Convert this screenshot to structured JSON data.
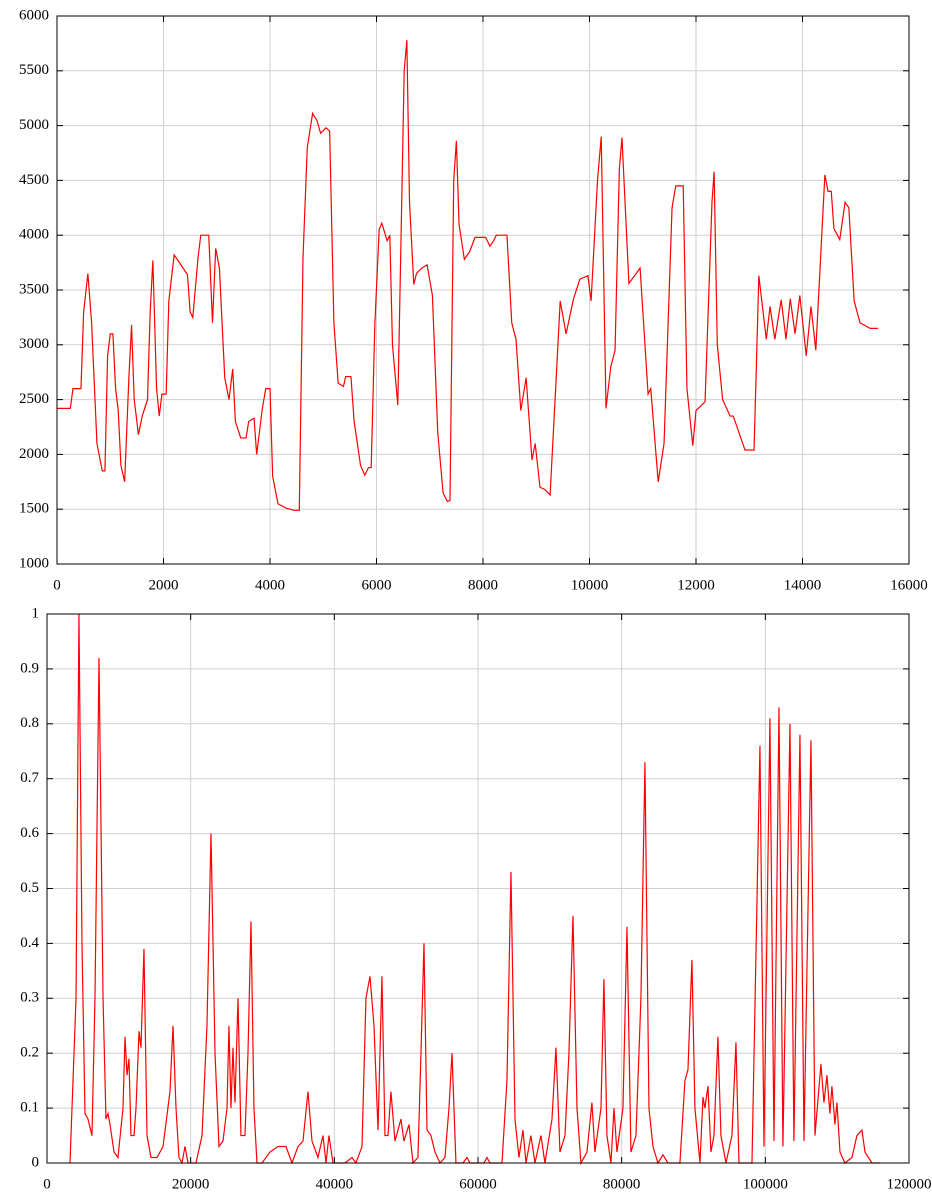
{
  "chart_data": [
    {
      "type": "line",
      "color": "#ff0000",
      "grid": true,
      "xlim": [
        0,
        16000
      ],
      "ylim": [
        1000,
        6000
      ],
      "xticks": [
        0,
        2000,
        4000,
        6000,
        8000,
        10000,
        12000,
        14000,
        16000
      ],
      "yticks": [
        1000,
        1500,
        2000,
        2500,
        3000,
        3500,
        4000,
        4500,
        5000,
        5500,
        6000
      ],
      "x": [
        0,
        250,
        300,
        450,
        500,
        580,
        650,
        750,
        850,
        900,
        950,
        1000,
        1050,
        1100,
        1150,
        1200,
        1270,
        1350,
        1400,
        1450,
        1530,
        1600,
        1700,
        1750,
        1800,
        1870,
        1920,
        1970,
        2050,
        2100,
        2200,
        2300,
        2450,
        2500,
        2550,
        2650,
        2700,
        2850,
        2920,
        2980,
        3050,
        3150,
        3230,
        3300,
        3350,
        3450,
        3550,
        3600,
        3700,
        3750,
        3850,
        3920,
        4000,
        4050,
        4150,
        4300,
        4450,
        4550,
        4620,
        4700,
        4800,
        4880,
        4950,
        5050,
        5120,
        5200,
        5280,
        5380,
        5420,
        5520,
        5580,
        5700,
        5780,
        5850,
        5900,
        5970,
        6050,
        6100,
        6200,
        6250,
        6300,
        6400,
        6450,
        6520,
        6570,
        6620,
        6700,
        6750,
        6850,
        6950,
        7050,
        7150,
        7250,
        7330,
        7380,
        7450,
        7500,
        7550,
        7650,
        7750,
        7850,
        8050,
        8130,
        8200,
        8250,
        8450,
        8540,
        8620,
        8710,
        8810,
        8920,
        8980,
        9070,
        9160,
        9260,
        9450,
        9560,
        9700,
        9820,
        9970,
        10030,
        10150,
        10220,
        10310,
        10400,
        10480,
        10560,
        10610,
        10740,
        10950,
        11100,
        11150,
        11290,
        11400,
        11550,
        11620,
        11760,
        11830,
        11940,
        12000,
        12170,
        12300,
        12340,
        12400,
        12500,
        12640,
        12700,
        12920,
        13090,
        13180,
        13320,
        13390,
        13480,
        13600,
        13690,
        13770,
        13860,
        13950,
        14070,
        14160,
        14250,
        14420,
        14480,
        14540,
        14590,
        14700,
        14800,
        14870,
        14970,
        15080,
        15270,
        15420
      ],
      "values": [
        2420,
        2420,
        2600,
        2600,
        3300,
        3650,
        3200,
        2100,
        1850,
        1850,
        2900,
        3100,
        3100,
        2600,
        2400,
        1900,
        1750,
        2700,
        3180,
        2500,
        2180,
        2350,
        2500,
        3300,
        3770,
        2600,
        2350,
        2550,
        2550,
        3400,
        3820,
        3750,
        3640,
        3300,
        3250,
        3800,
        4000,
        4000,
        3200,
        3880,
        3700,
        2700,
        2500,
        2780,
        2300,
        2150,
        2150,
        2300,
        2330,
        2000,
        2400,
        2600,
        2600,
        1800,
        1550,
        1510,
        1490,
        1490,
        3800,
        4800,
        5110,
        5050,
        4930,
        4980,
        4950,
        3200,
        2650,
        2620,
        2710,
        2710,
        2300,
        1900,
        1810,
        1880,
        1880,
        3200,
        4050,
        4110,
        3950,
        4000,
        3000,
        2450,
        3700,
        5500,
        5780,
        4300,
        3550,
        3650,
        3700,
        3730,
        3450,
        2200,
        1650,
        1570,
        1580,
        4500,
        4860,
        4100,
        3780,
        3850,
        3980,
        3980,
        3900,
        3950,
        4000,
        4000,
        3200,
        3050,
        2400,
        2700,
        1950,
        2100,
        1700,
        1680,
        1630,
        3400,
        3100,
        3420,
        3600,
        3630,
        3400,
        4500,
        4900,
        2420,
        2800,
        2950,
        4600,
        4890,
        3560,
        3700,
        2550,
        2600,
        1750,
        2100,
        4250,
        4450,
        4450,
        2600,
        2080,
        2400,
        2480,
        4300,
        4580,
        3000,
        2500,
        2350,
        2350,
        2040,
        2040,
        3630,
        3050,
        3350,
        3050,
        3410,
        3050,
        3420,
        3100,
        3450,
        2900,
        3350,
        2950,
        4550,
        4400,
        4400,
        4060,
        3960,
        4300,
        4250,
        3400,
        3200,
        3150,
        3150
      ]
    },
    {
      "type": "line",
      "color": "#ff0000",
      "grid": true,
      "xlim": [
        0,
        120000
      ],
      "ylim": [
        0,
        1
      ],
      "xticks": [
        0,
        20000,
        40000,
        60000,
        80000,
        100000,
        120000
      ],
      "yticks": [
        0,
        0.1,
        0.2,
        0.3,
        0.4,
        0.5,
        0.6,
        0.7,
        0.8,
        0.9,
        1
      ],
      "x": [
        3200,
        4040,
        4450,
        4870,
        5290,
        5710,
        6260,
        6680,
        7240,
        7800,
        8210,
        8490,
        8770,
        9330,
        9880,
        10580,
        10860,
        11140,
        11410,
        11690,
        12110,
        12390,
        12810,
        13080,
        13500,
        13920,
        14480,
        15310,
        16150,
        17120,
        17540,
        17960,
        18370,
        18790,
        19210,
        19630,
        20740,
        21580,
        22270,
        22830,
        23390,
        23940,
        24500,
        25060,
        25330,
        25610,
        25890,
        26170,
        26590,
        27000,
        27560,
        27980,
        28400,
        28810,
        29230,
        29930,
        31040,
        32160,
        33270,
        34100,
        34940,
        35640,
        36330,
        36890,
        37720,
        38420,
        38840,
        39250,
        39810,
        41480,
        42460,
        43010,
        43850,
        44400,
        44960,
        45520,
        46080,
        46630,
        47050,
        47470,
        47880,
        48440,
        49280,
        49690,
        50390,
        50950,
        51640,
        52060,
        52480,
        52900,
        53450,
        54010,
        54710,
        55400,
        55960,
        56380,
        56930,
        57910,
        58460,
        58880,
        60830,
        61250,
        61670,
        63340,
        64030,
        64590,
        65150,
        65700,
        66260,
        66680,
        67370,
        67930,
        68760,
        69320,
        70300,
        70850,
        71410,
        72110,
        72660,
        73220,
        73780,
        74330,
        75170,
        75860,
        76280,
        77120,
        77530,
        77950,
        78510,
        78930,
        79340,
        80180,
        80740,
        81290,
        81990,
        82680,
        83240,
        83800,
        84360,
        85050,
        85750,
        86440,
        88110,
        88810,
        89230,
        89780,
        90200,
        90900,
        91320,
        91590,
        92010,
        92430,
        92850,
        93400,
        93820,
        94520,
        95350,
        95910,
        96330,
        98140,
        99250,
        99810,
        100640,
        101200,
        101900,
        102450,
        103430,
        103980,
        104820,
        105380,
        106350,
        106910,
        107740,
        108160,
        108580,
        108990,
        109270,
        109690,
        109970,
        110390,
        111080,
        112060,
        112750,
        113450,
        113870,
        114840,
        115950
      ],
      "values": [
        0,
        0.3,
        1.0,
        0.4,
        0.09,
        0.08,
        0.05,
        0.3,
        0.92,
        0.3,
        0.08,
        0.09,
        0.07,
        0.02,
        0.01,
        0.1,
        0.23,
        0.16,
        0.19,
        0.05,
        0.05,
        0.1,
        0.24,
        0.21,
        0.39,
        0.05,
        0.01,
        0.01,
        0.03,
        0.13,
        0.25,
        0.1,
        0.01,
        0,
        0.03,
        0,
        0,
        0.05,
        0.25,
        0.6,
        0.2,
        0.03,
        0.04,
        0.1,
        0.25,
        0.1,
        0.21,
        0.11,
        0.3,
        0.05,
        0.05,
        0.2,
        0.44,
        0.1,
        0,
        0,
        0.02,
        0.03,
        0.03,
        0,
        0.03,
        0.04,
        0.13,
        0.04,
        0.01,
        0.05,
        0,
        0.05,
        0,
        0,
        0.01,
        0,
        0.03,
        0.3,
        0.34,
        0.25,
        0.06,
        0.34,
        0.05,
        0.05,
        0.13,
        0.04,
        0.08,
        0.04,
        0.07,
        0,
        0.01,
        0.2,
        0.4,
        0.06,
        0.05,
        0.02,
        0,
        0.01,
        0.1,
        0.2,
        0,
        0,
        0.01,
        0,
        0,
        0.01,
        0,
        0,
        0.15,
        0.53,
        0.08,
        0.01,
        0.06,
        0,
        0.05,
        0,
        0.05,
        0,
        0.08,
        0.21,
        0.02,
        0.05,
        0.2,
        0.45,
        0.1,
        0,
        0.02,
        0.11,
        0.02,
        0.1,
        0.335,
        0.05,
        0,
        0.1,
        0.02,
        0.1,
        0.43,
        0.02,
        0.05,
        0.3,
        0.73,
        0.1,
        0.03,
        0,
        0.015,
        0,
        0,
        0.15,
        0.17,
        0.37,
        0.1,
        0,
        0.12,
        0.1,
        0.14,
        0.02,
        0.05,
        0.23,
        0.05,
        0,
        0.05,
        0.22,
        0,
        0,
        0.76,
        0.03,
        0.81,
        0.04,
        0.83,
        0.03,
        0.8,
        0.04,
        0.78,
        0.04,
        0.77,
        0.05,
        0.18,
        0.11,
        0.16,
        0.09,
        0.14,
        0.07,
        0.11,
        0.02,
        0,
        0.01,
        0.05,
        0.06,
        0.02,
        0,
        0
      ]
    }
  ]
}
